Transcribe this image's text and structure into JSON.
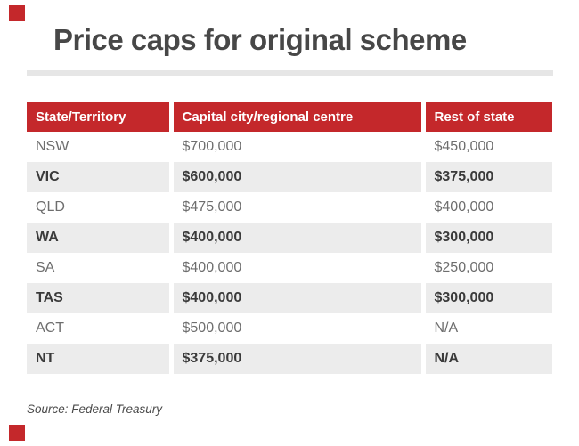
{
  "colors": {
    "accent_red": "#c4282b",
    "row_alt_gray": "#ececec",
    "divider_gray": "#e6e6e6",
    "title_gray": "#474747",
    "text_light": "#6e6e6e",
    "text_dark": "#3a3a3a"
  },
  "chart_data": {
    "type": "table",
    "title": "Price caps for original scheme",
    "columns": [
      "State/Territory",
      "Capital city/regional centre",
      "Rest of state"
    ],
    "rows": [
      [
        "NSW",
        "$700,000",
        "$450,000"
      ],
      [
        "VIC",
        "$600,000",
        "$375,000"
      ],
      [
        "QLD",
        "$475,000",
        "$400,000"
      ],
      [
        "WA",
        "$400,000",
        "$300,000"
      ],
      [
        "SA",
        "$400,000",
        "$250,000"
      ],
      [
        "TAS",
        "$400,000",
        "$300,000"
      ],
      [
        "ACT",
        "$500,000",
        "N/A"
      ],
      [
        "NT",
        "$375,000",
        "N/A"
      ]
    ],
    "source": "Source: Federal Treasury",
    "layout_hints": {
      "alternating_rows": true,
      "header_background": "#c4282b",
      "legend": "none",
      "grid": "off"
    }
  }
}
